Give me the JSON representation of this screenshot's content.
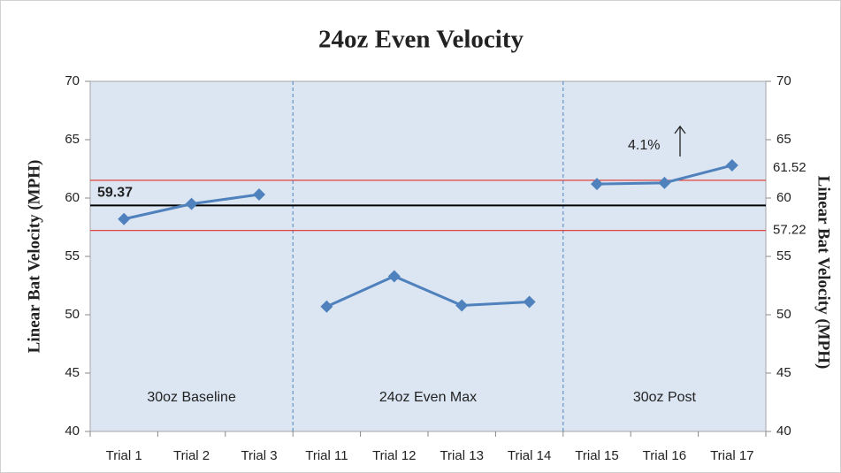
{
  "chart_data": {
    "type": "line",
    "title": "24oz Even Velocity",
    "ylabel": "Linear Bat Velocity (MPH)",
    "y2label": "Linear Bat Velocity (MPH)",
    "categories": [
      "Trial 1",
      "Trial 2",
      "Trial 3",
      "Trial 11",
      "Trial 12",
      "Trial 13",
      "Trial 14",
      "Trial 15",
      "Trial 16",
      "Trial 17"
    ],
    "series": [
      {
        "color": "#4f81bd",
        "values": [
          58.2,
          59.5,
          60.3,
          null,
          null,
          null,
          null,
          null,
          null,
          null
        ]
      },
      {
        "color": "#4f81bd",
        "values": [
          null,
          null,
          null,
          50.7,
          53.3,
          50.8,
          51.1,
          null,
          null,
          null
        ]
      },
      {
        "color": "#4f81bd",
        "values": [
          null,
          null,
          null,
          null,
          null,
          null,
          null,
          61.2,
          61.3,
          62.8
        ]
      }
    ],
    "regions": [
      "30oz Baseline",
      "24oz Even Max",
      "30oz Post"
    ],
    "reference_lines": [
      {
        "value": 59.37,
        "color": "#000000",
        "label_side": "left"
      },
      {
        "value": 61.52,
        "color": "#e0302a",
        "label_side": "right"
      },
      {
        "value": 57.22,
        "color": "#e0302a",
        "label_side": "right"
      }
    ],
    "annotation": "4.1%",
    "ylim": [
      40,
      70
    ],
    "yticks": [
      40,
      45,
      50,
      55,
      60,
      65,
      70
    ],
    "y2lim": [
      40,
      70
    ],
    "y2ticks": [
      40,
      45,
      50,
      55,
      60,
      65,
      70
    ]
  }
}
